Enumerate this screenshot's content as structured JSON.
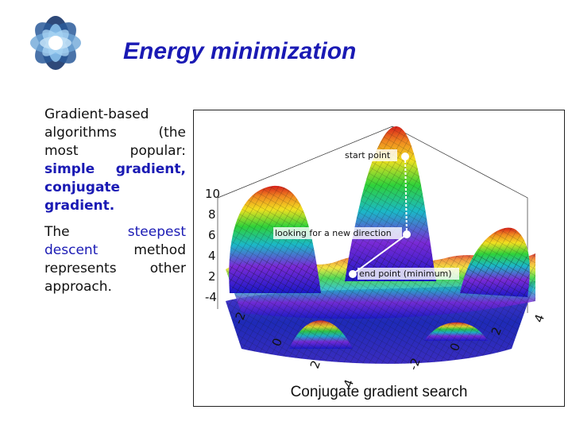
{
  "slide": {
    "title": "Energy minimization",
    "paragraph1": {
      "intro": "Gradient-based algorithms (the most popular: ",
      "methods": "simple gradient, conjugate gradient."
    },
    "paragraph2": {
      "lead": "The ",
      "highlight": "steepest descent",
      "rest": " method represents other approach."
    }
  },
  "figure": {
    "caption": "Conjugate gradient search",
    "annotations": {
      "start": "start point",
      "direction": "looking for a new direction",
      "end": "end point (minimum)"
    },
    "z_ticks": [
      "10",
      "8",
      "6",
      "4",
      "2",
      "-4"
    ],
    "x_ticks": [
      "-2",
      "0",
      "2",
      "4"
    ],
    "y_ticks": [
      "4",
      "2",
      "0",
      "-2"
    ]
  },
  "colors": {
    "title": "#1a1ab4",
    "highlight": "#1a1ab4",
    "logo_dark": "#1c3a6e",
    "logo_light": "#6fa8d8"
  }
}
